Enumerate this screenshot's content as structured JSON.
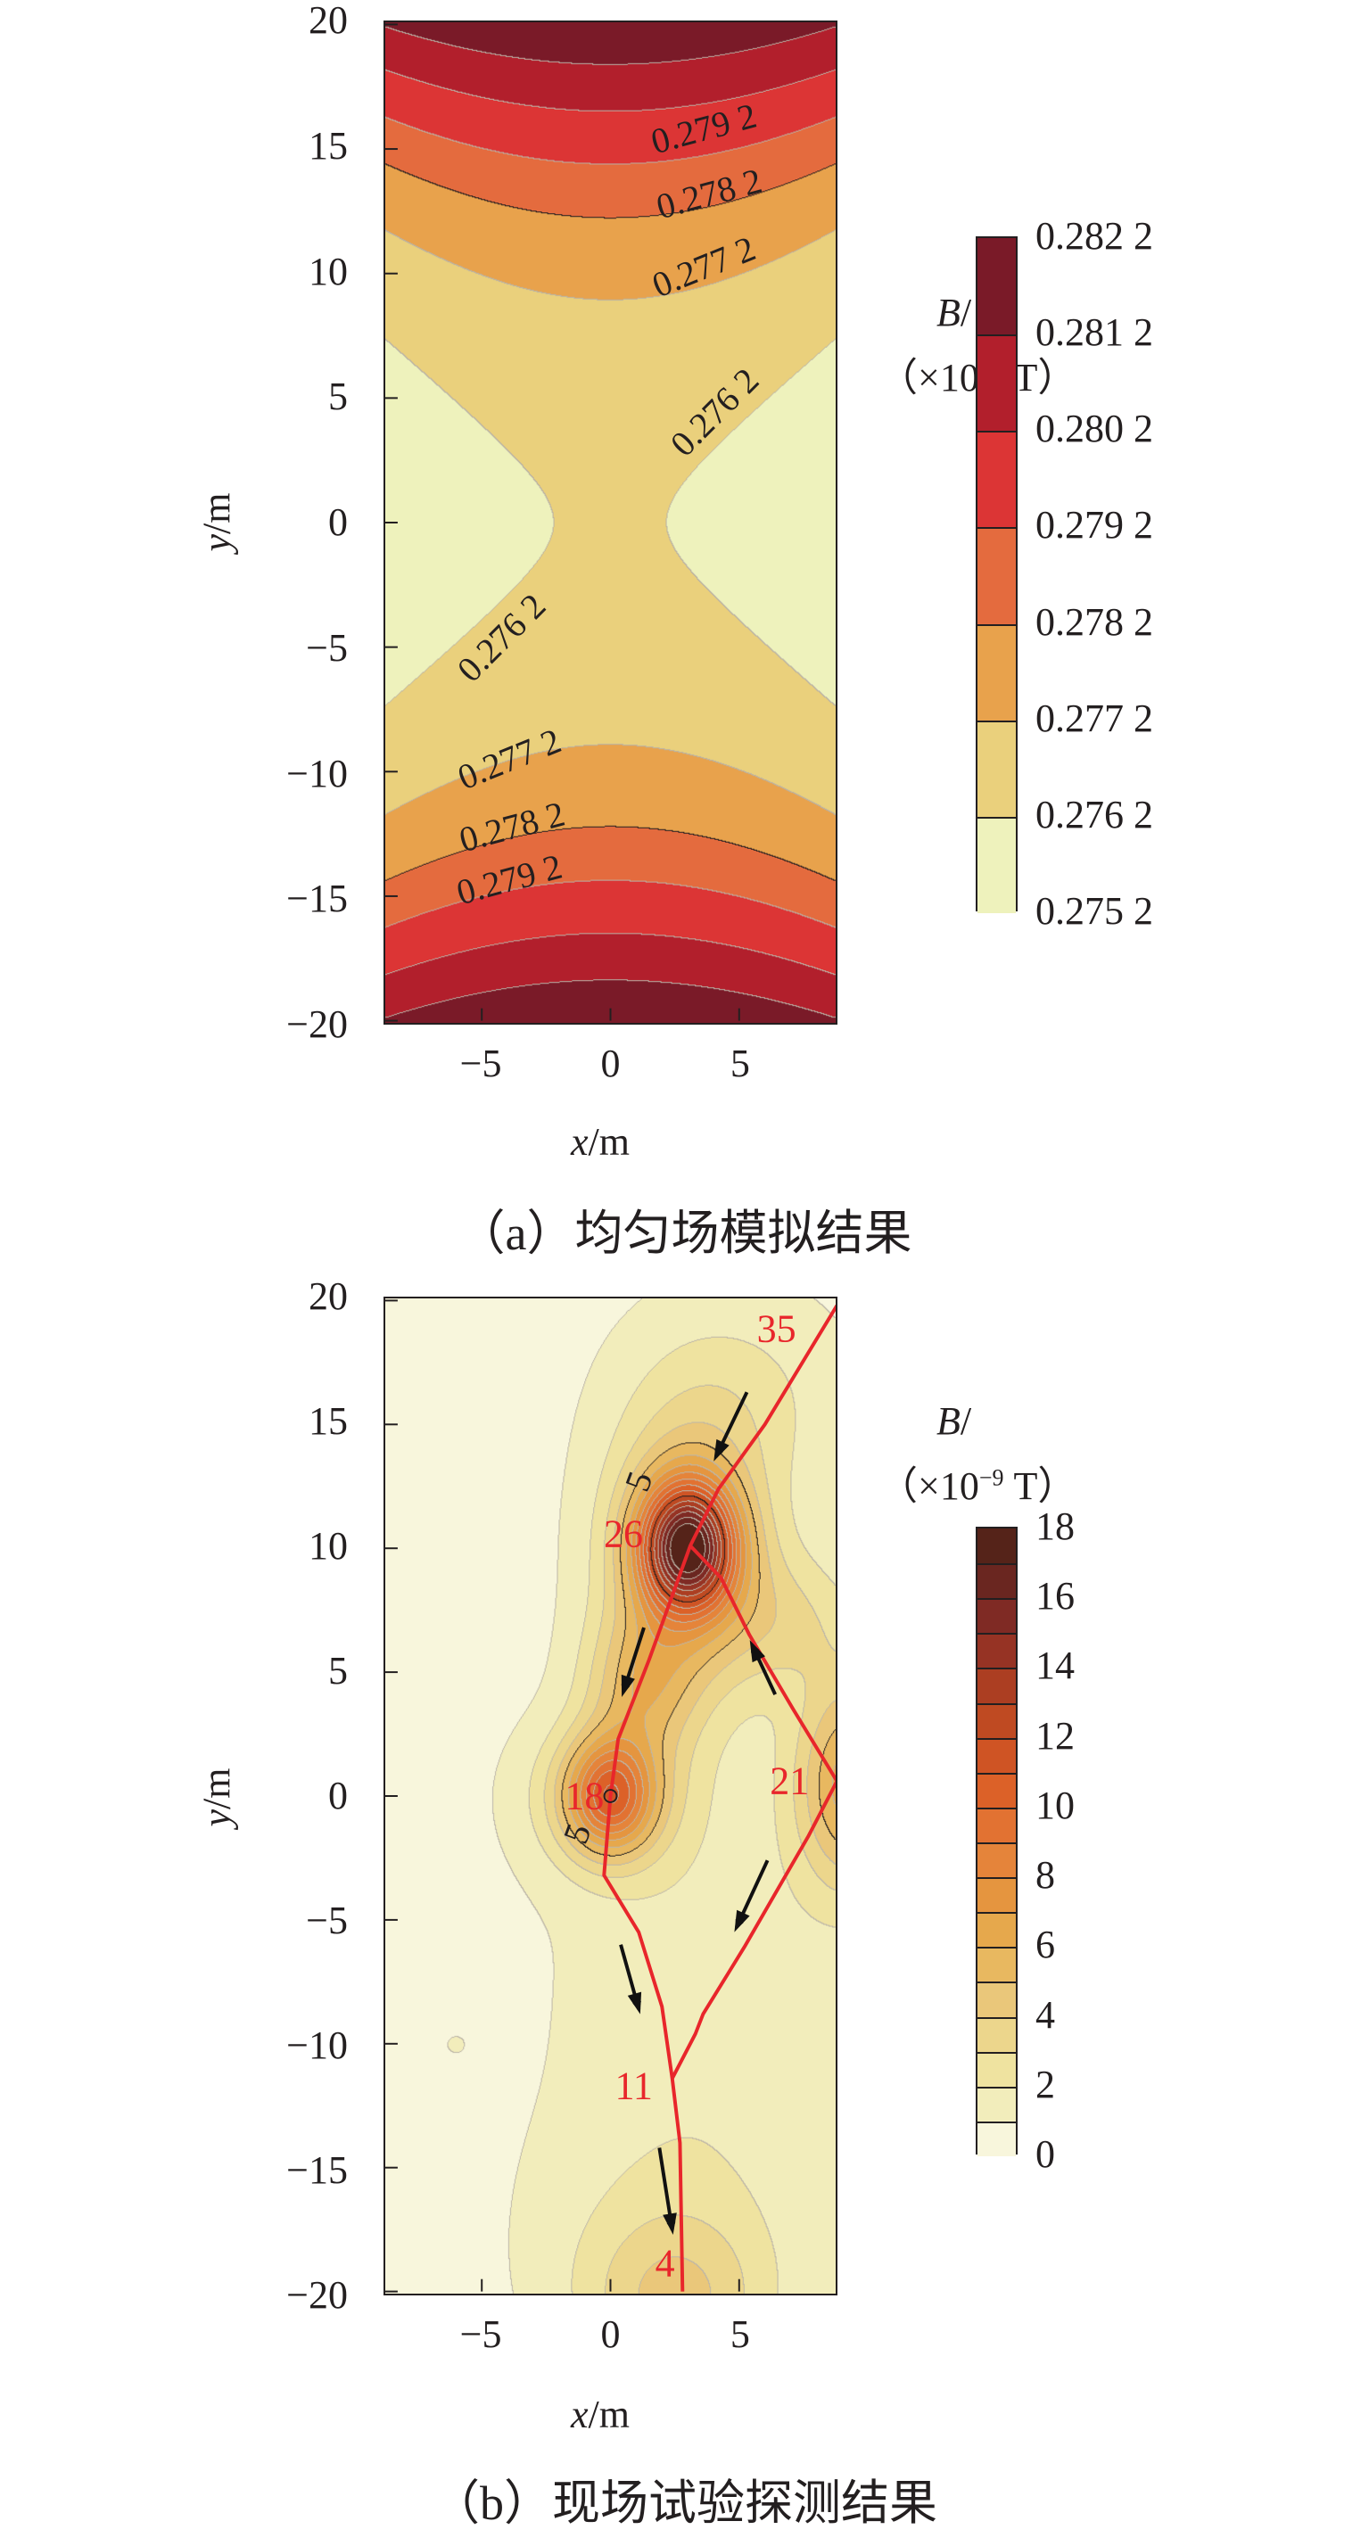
{
  "chart_data": [
    {
      "type": "contour",
      "title": "（a）均匀场模拟结果",
      "xlabel_var": "x",
      "xlabel_unit": "/m",
      "ylabel_var": "y",
      "ylabel_unit": "/m",
      "xlim": [
        -8.75,
        8.75
      ],
      "ylim": [
        -20,
        20
      ],
      "xticks": [
        -5,
        0,
        5
      ],
      "xtick_labels": [
        "−5",
        "0",
        "5"
      ],
      "yticks": [
        20,
        15,
        10,
        5,
        0,
        -5,
        -10,
        -15,
        -20
      ],
      "ytick_labels": [
        "20",
        "15",
        "10",
        "5",
        "0",
        "−5",
        "−10",
        "−15",
        "−20"
      ],
      "colorbar": {
        "title_var": "B",
        "title_sep": "/",
        "unit_prefix": "（×10",
        "unit_exp": "−9",
        "unit_suffix": " T）",
        "levels": [
          0.2752,
          0.2762,
          0.2772,
          0.2782,
          0.2792,
          0.2802,
          0.2812,
          0.2822
        ],
        "tick_labels": [
          "0.275 2",
          "0.276 2",
          "0.277 2",
          "0.278 2",
          "0.279 2",
          "0.280 2",
          "0.281 2",
          "0.282 2"
        ],
        "colors": [
          "#eef2bc",
          "#ead07c",
          "#e8a24c",
          "#e46b3e",
          "#dc3535",
          "#b21f2c",
          "#7a1a28"
        ]
      },
      "contour_labels": [
        {
          "text": "0.279 2",
          "x": 3.6,
          "y": 15.7
        },
        {
          "text": "0.278 2",
          "x": 3.8,
          "y": 13.1
        },
        {
          "text": "0.277 2",
          "x": 3.6,
          "y": 10.2
        },
        {
          "text": "0.276 2",
          "x": 4.0,
          "y": 4.4
        },
        {
          "text": "0.276 2",
          "x": -4.2,
          "y": -4.6
        },
        {
          "text": "0.277 2",
          "x": -3.9,
          "y": -9.4
        },
        {
          "text": "0.278 2",
          "x": -3.8,
          "y": -12.1
        },
        {
          "text": "0.279 2",
          "x": -3.9,
          "y": -14.2
        }
      ]
    },
    {
      "type": "contour",
      "title": "（b）现场试验探测结果",
      "xlabel_var": "x",
      "xlabel_unit": "/m",
      "ylabel_var": "y",
      "ylabel_unit": "/m",
      "xlim": [
        -8.75,
        8.75
      ],
      "ylim": [
        -20,
        20
      ],
      "xticks": [
        -5,
        0,
        5
      ],
      "xtick_labels": [
        "−5",
        "0",
        "5"
      ],
      "yticks": [
        20,
        15,
        10,
        5,
        0,
        -5,
        -10,
        -15,
        -20
      ],
      "ytick_labels": [
        "20",
        "15",
        "10",
        "5",
        "0",
        "−5",
        "−10",
        "−15",
        "−20"
      ],
      "colorbar": {
        "title_var": "B",
        "title_sep": "/",
        "unit_prefix": "（×10",
        "unit_exp": "−9",
        "unit_suffix": " T）",
        "levels": [
          0,
          1,
          2,
          3,
          4,
          5,
          6,
          7,
          8,
          9,
          10,
          11,
          12,
          13,
          14,
          15,
          16,
          17,
          18
        ],
        "tick_values": [
          0,
          2,
          4,
          6,
          8,
          10,
          12,
          14,
          16,
          18
        ],
        "tick_labels": [
          "0",
          "2",
          "4",
          "6",
          "8",
          "10",
          "12",
          "14",
          "16",
          "18"
        ],
        "colors": [
          "#f8f6dc",
          "#f2edbb",
          "#efe3a0",
          "#ecd68c",
          "#eac77a",
          "#e8b860",
          "#e6a84c",
          "#e5953f",
          "#e5843a",
          "#e27232",
          "#dc6128",
          "#cf5424",
          "#bf4a22",
          "#ac3e22",
          "#963324",
          "#7f2a24",
          "#6a2620",
          "#552319"
        ]
      },
      "contour_labels": [
        {
          "text": "5",
          "x": 1.1,
          "y": 12.6
        },
        {
          "text": "5",
          "x": -1.3,
          "y": -1.5
        }
      ],
      "path_lines": [
        {
          "name": "red-line-1",
          "points": [
            [
              8.8,
              19.8
            ],
            [
              6.0,
              15.0
            ],
            [
              4.2,
              12.4
            ],
            [
              3.1,
              10.1
            ],
            [
              1.5,
              5.5
            ],
            [
              0.3,
              2.3
            ],
            [
              0.0,
              0.0
            ],
            [
              -0.25,
              -3.2
            ],
            [
              1.1,
              -5.5
            ],
            [
              2.0,
              -8.5
            ],
            [
              2.4,
              -11.4
            ],
            [
              2.7,
              -14
            ],
            [
              2.8,
              -20
            ]
          ]
        },
        {
          "name": "red-line-2",
          "points": [
            [
              3.1,
              10.1
            ],
            [
              4.3,
              8.8
            ],
            [
              5.4,
              6.5
            ],
            [
              7.1,
              3.5
            ],
            [
              8.8,
              0.6
            ],
            [
              7.7,
              -1.6
            ],
            [
              5.2,
              -6.1
            ],
            [
              3.6,
              -8.8
            ],
            [
              3.3,
              -9.6
            ],
            [
              2.4,
              -11.4
            ]
          ]
        }
      ],
      "point_labels": [
        {
          "text": "35",
          "x": 6.4,
          "y": 18.7
        },
        {
          "text": "26",
          "x": 0.5,
          "y": 10.5
        },
        {
          "text": "18",
          "x": -1.0,
          "y": 0.0
        },
        {
          "text": "21",
          "x": 6.9,
          "y": 0.6
        },
        {
          "text": "11",
          "x": 0.9,
          "y": -11.6
        },
        {
          "text": "4",
          "x": 2.1,
          "y": -18.7
        }
      ],
      "arrows": [
        {
          "from": [
            5.3,
            16.3
          ],
          "to": [
            4.1,
            13.7
          ]
        },
        {
          "from": [
            1.3,
            6.8
          ],
          "to": [
            0.5,
            4.2
          ]
        },
        {
          "from": [
            6.4,
            4.1
          ],
          "to": [
            5.5,
            6.1
          ]
        },
        {
          "from": [
            6.1,
            -2.6
          ],
          "to": [
            4.9,
            -5.3
          ]
        },
        {
          "from": [
            0.4,
            -6.0
          ],
          "to": [
            1.1,
            -8.6
          ]
        },
        {
          "from": [
            1.9,
            -14.2
          ],
          "to": [
            2.4,
            -17.5
          ]
        }
      ],
      "path_color": "#e8262b"
    }
  ]
}
